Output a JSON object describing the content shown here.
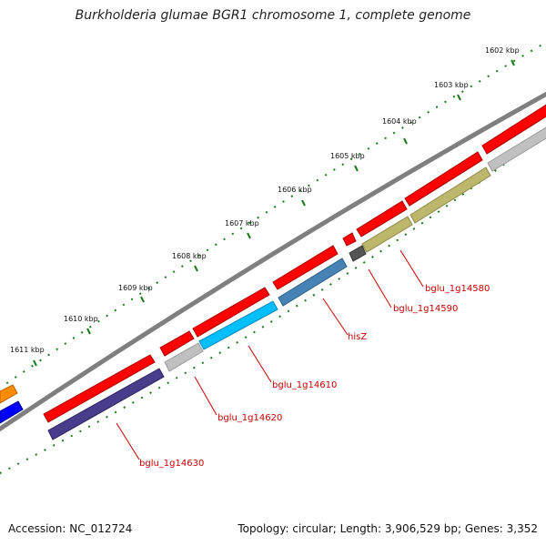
{
  "title": "Burkholderia glumae BGR1 chromosome 1, complete genome",
  "footer": {
    "accession": "Accession: NC_012724",
    "topology": "Topology: circular; Length: 3,906,529 bp; Genes: 3,352"
  },
  "ticks": [
    {
      "label": "1602 kbp"
    },
    {
      "label": "1603 kbp"
    },
    {
      "label": "1604 kbp"
    },
    {
      "label": "1605 kbp"
    },
    {
      "label": "1606 kbp"
    },
    {
      "label": "1607 kbp"
    },
    {
      "label": "1608 kbp"
    },
    {
      "label": "1609 kbp"
    },
    {
      "label": "1610 kbp"
    },
    {
      "label": "1611 kbp"
    }
  ],
  "gene_labels": [
    {
      "name": "bglu_1g14580"
    },
    {
      "name": "bglu_1g14590"
    },
    {
      "name": "hisZ"
    },
    {
      "name": "bglu_1g14610"
    },
    {
      "name": "bglu_1g14620"
    },
    {
      "name": "bglu_1g14630"
    }
  ],
  "colors": {
    "cds": "#ff0000",
    "backbone": "#808080",
    "ticks": "#1a7a1a",
    "label": "#cc0000",
    "gene_olive": "#bdb76b",
    "gene_gray": "#c0c0c0",
    "gene_darkgray": "#555555",
    "gene_steelblue": "#4682b4",
    "gene_cyan": "#00bfff",
    "gene_slate": "#483d8b",
    "gene_orange": "#ff8c00",
    "gene_blue": "#0000ff"
  }
}
